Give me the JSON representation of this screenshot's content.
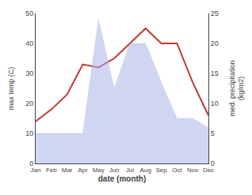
{
  "chart_data": {
    "type": "line",
    "categories": [
      "Jan",
      "Feb",
      "Mar",
      "Apr",
      "May",
      "Jun",
      "Jul",
      "Aug",
      "Sep",
      "Oct",
      "Nov",
      "Dec"
    ],
    "xlabel": "date (month)",
    "ylabel": "max temp (C)",
    "y2label": "med. precipitation\n(kg/m2)",
    "ylim": [
      0,
      50
    ],
    "yticks": [
      0,
      10,
      20,
      30,
      40,
      50
    ],
    "y2lim": [
      0,
      25
    ],
    "y2ticks": [
      0,
      5,
      10,
      15,
      20,
      25
    ],
    "grid": false,
    "series": [
      {
        "type": "area",
        "axis": "y2",
        "color": "#aab4e8",
        "values": [
          5,
          5,
          5,
          5,
          24,
          12.5,
          20,
          20,
          13.5,
          7.5,
          7.5,
          6
        ]
      },
      {
        "type": "line",
        "color": "#c0392b",
        "values": [
          14,
          18,
          23,
          33,
          32,
          35,
          40,
          45,
          40,
          40,
          27,
          16
        ]
      }
    ]
  }
}
